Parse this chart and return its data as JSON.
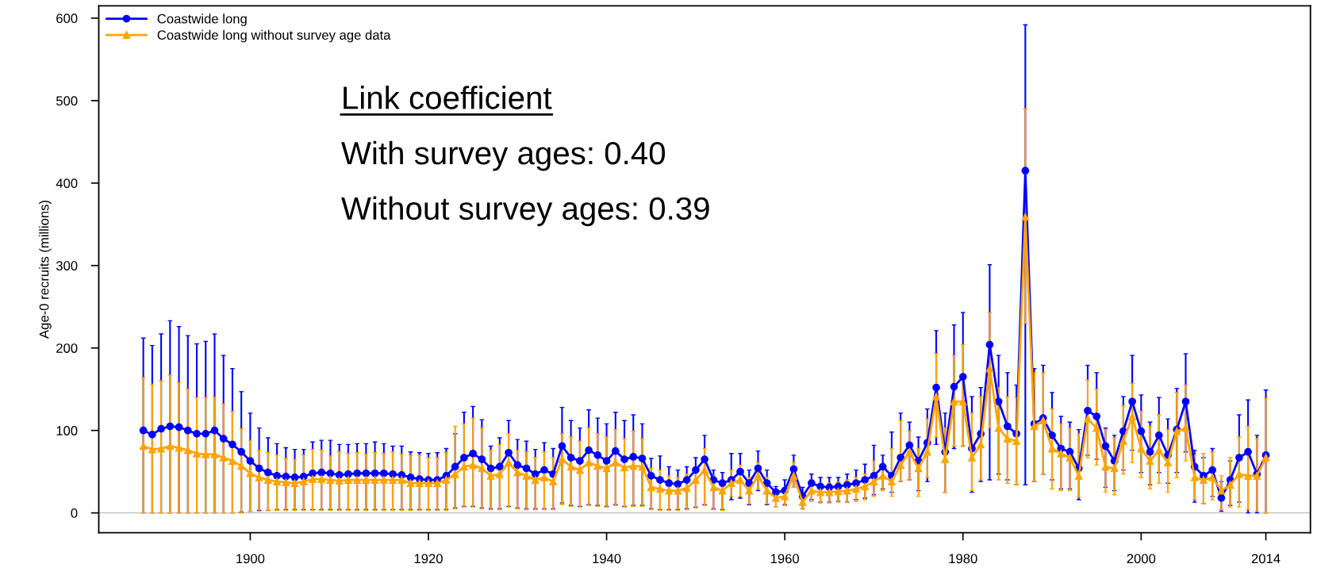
{
  "chart_data": {
    "type": "line",
    "ylabel": "Age-0 recruits (millions)",
    "x": [
      1888,
      1889,
      1890,
      1891,
      1892,
      1893,
      1894,
      1895,
      1896,
      1897,
      1898,
      1899,
      1900,
      1901,
      1902,
      1903,
      1904,
      1905,
      1906,
      1907,
      1908,
      1909,
      1910,
      1911,
      1912,
      1913,
      1914,
      1915,
      1916,
      1917,
      1918,
      1919,
      1920,
      1921,
      1922,
      1923,
      1924,
      1925,
      1926,
      1927,
      1928,
      1929,
      1930,
      1931,
      1932,
      1933,
      1934,
      1935,
      1936,
      1937,
      1938,
      1939,
      1940,
      1941,
      1942,
      1943,
      1944,
      1945,
      1946,
      1947,
      1948,
      1949,
      1950,
      1951,
      1952,
      1953,
      1954,
      1955,
      1956,
      1957,
      1958,
      1959,
      1960,
      1961,
      1962,
      1963,
      1964,
      1965,
      1966,
      1967,
      1968,
      1969,
      1970,
      1971,
      1972,
      1973,
      1974,
      1975,
      1976,
      1977,
      1978,
      1979,
      1980,
      1981,
      1982,
      1983,
      1984,
      1985,
      1986,
      1987,
      1988,
      1989,
      1990,
      1991,
      1992,
      1993,
      1994,
      1995,
      1996,
      1997,
      1998,
      1999,
      2000,
      2001,
      2002,
      2003,
      2004,
      2005,
      2006,
      2007,
      2008,
      2009,
      2010,
      2011,
      2012,
      2013,
      2014
    ],
    "series": [
      {
        "name": "Coastwide long",
        "color": "#0000ff",
        "marker": "circle",
        "values": [
          100,
          95,
          102,
          105,
          104,
          100,
          96,
          96,
          100,
          90,
          83,
          74,
          63,
          54,
          49,
          45,
          44,
          43,
          44,
          48,
          49,
          48,
          46,
          47,
          48,
          48,
          48,
          48,
          47,
          46,
          43,
          41,
          40,
          40,
          45,
          56,
          67,
          72,
          65,
          54,
          56,
          73,
          58,
          54,
          47,
          52,
          47,
          81,
          67,
          63,
          76,
          70,
          63,
          75,
          65,
          68,
          66,
          45,
          40,
          36,
          35,
          40,
          52,
          65,
          40,
          36,
          40,
          50,
          36,
          54,
          36,
          25,
          27,
          53,
          20,
          36,
          32,
          31,
          32,
          34,
          36,
          40,
          45,
          56,
          45,
          67,
          82,
          63,
          85,
          152,
          74,
          153,
          165,
          78,
          96,
          204,
          135,
          105,
          96,
          415,
          108,
          115,
          94,
          78,
          74,
          54,
          124,
          117,
          81,
          63,
          99,
          135,
          99,
          74,
          94,
          70,
          101,
          135,
          56,
          45,
          52,
          18,
          40,
          67,
          74,
          47,
          70
        ],
        "errors": [
          [
            0,
            212
          ],
          [
            0,
            203
          ],
          [
            0,
            217
          ],
          [
            0,
            233
          ],
          [
            0,
            226
          ],
          [
            0,
            215
          ],
          [
            0,
            205
          ],
          [
            0,
            208
          ],
          [
            0,
            217
          ],
          [
            0,
            191
          ],
          [
            0,
            175
          ],
          [
            1,
            147
          ],
          [
            2,
            121
          ],
          [
            3,
            103
          ],
          [
            3,
            91
          ],
          [
            4,
            84
          ],
          [
            4,
            79
          ],
          [
            4,
            77
          ],
          [
            4,
            77
          ],
          [
            4,
            86
          ],
          [
            4,
            88
          ],
          [
            4,
            88
          ],
          [
            4,
            83
          ],
          [
            4,
            83
          ],
          [
            4,
            84
          ],
          [
            4,
            84
          ],
          [
            4,
            86
          ],
          [
            4,
            84
          ],
          [
            4,
            81
          ],
          [
            4,
            81
          ],
          [
            4,
            74
          ],
          [
            4,
            73
          ],
          [
            4,
            72
          ],
          [
            4,
            73
          ],
          [
            4,
            78
          ],
          [
            6,
            96
          ],
          [
            8,
            122
          ],
          [
            8,
            129
          ],
          [
            6,
            113
          ],
          [
            5,
            81
          ],
          [
            5,
            91
          ],
          [
            8,
            112
          ],
          [
            6,
            89
          ],
          [
            5,
            87
          ],
          [
            5,
            77
          ],
          [
            5,
            85
          ],
          [
            5,
            78
          ],
          [
            12,
            128
          ],
          [
            9,
            112
          ],
          [
            8,
            103
          ],
          [
            10,
            125
          ],
          [
            9,
            115
          ],
          [
            8,
            108
          ],
          [
            10,
            122
          ],
          [
            8,
            112
          ],
          [
            9,
            119
          ],
          [
            9,
            108
          ],
          [
            5,
            66
          ],
          [
            4,
            69
          ],
          [
            4,
            56
          ],
          [
            4,
            52
          ],
          [
            5,
            56
          ],
          [
            7,
            67
          ],
          [
            10,
            94
          ],
          [
            5,
            52
          ],
          [
            4,
            49
          ],
          [
            16,
            72
          ],
          [
            18,
            72
          ],
          [
            10,
            52
          ],
          [
            27,
            75
          ],
          [
            10,
            52
          ],
          [
            7,
            32
          ],
          [
            10,
            40
          ],
          [
            31,
            70
          ],
          [
            5,
            31
          ],
          [
            16,
            47
          ],
          [
            13,
            43
          ],
          [
            13,
            43
          ],
          [
            14,
            43
          ],
          [
            13,
            47
          ],
          [
            16,
            52
          ],
          [
            18,
            59
          ],
          [
            22,
            82
          ],
          [
            29,
            70
          ],
          [
            25,
            98
          ],
          [
            38,
            121
          ],
          [
            40,
            110
          ],
          [
            27,
            92
          ],
          [
            38,
            126
          ],
          [
            83,
            221
          ],
          [
            25,
            121
          ],
          [
            78,
            228
          ],
          [
            81,
            243
          ],
          [
            25,
            141
          ],
          [
            38,
            152
          ],
          [
            40,
            301
          ],
          [
            47,
            191
          ],
          [
            40,
            170
          ],
          [
            34,
            155
          ],
          [
            34,
            592
          ],
          [
            38,
            175
          ],
          [
            47,
            179
          ],
          [
            40,
            146
          ],
          [
            29,
            117
          ],
          [
            29,
            110
          ],
          [
            16,
            101
          ],
          [
            70,
            179
          ],
          [
            65,
            170
          ],
          [
            31,
            103
          ],
          [
            27,
            94
          ],
          [
            52,
            141
          ],
          [
            76,
            191
          ],
          [
            49,
            143
          ],
          [
            34,
            110
          ],
          [
            49,
            140
          ],
          [
            36,
            114
          ],
          [
            49,
            151
          ],
          [
            74,
            193
          ],
          [
            13,
            76
          ],
          [
            11,
            67
          ],
          [
            20,
            78
          ],
          [
            2,
            38
          ],
          [
            9,
            63
          ],
          [
            13,
            119
          ],
          [
            0,
            137
          ],
          [
            0,
            94
          ],
          [
            0,
            149
          ]
        ]
      },
      {
        "name": "Coastwide long without survey age data",
        "color": "#ffa500",
        "marker": "triangle",
        "values": [
          81,
          77,
          78,
          81,
          79,
          76,
          72,
          71,
          71,
          67,
          63,
          57,
          48,
          43,
          40,
          38,
          37,
          36,
          38,
          41,
          41,
          40,
          39,
          40,
          40,
          40,
          40,
          40,
          40,
          40,
          36,
          36,
          36,
          36,
          40,
          47,
          56,
          58,
          54,
          45,
          47,
          61,
          49,
          45,
          40,
          43,
          38,
          65,
          56,
          52,
          61,
          57,
          54,
          61,
          55,
          57,
          56,
          31,
          29,
          27,
          27,
          30,
          40,
          52,
          31,
          27,
          36,
          40,
          27,
          45,
          27,
          18,
          20,
          45,
          13,
          27,
          25,
          25,
          26,
          27,
          29,
          32,
          38,
          45,
          38,
          58,
          74,
          54,
          74,
          141,
          65,
          135,
          135,
          67,
          83,
          175,
          103,
          90,
          87,
          359,
          105,
          112,
          78,
          72,
          67,
          45,
          114,
          103,
          56,
          54,
          87,
          117,
          78,
          63,
          76,
          61,
          99,
          103,
          43,
          40,
          43,
          27,
          34,
          47,
          45,
          45,
          67
        ],
        "errors": [
          [
            0,
            164
          ],
          [
            0,
            156
          ],
          [
            0,
            160
          ],
          [
            0,
            167
          ],
          [
            0,
            158
          ],
          [
            0,
            150
          ],
          [
            0,
            140
          ],
          [
            0,
            140
          ],
          [
            0,
            140
          ],
          [
            0,
            132
          ],
          [
            0,
            123
          ],
          [
            0,
            102
          ],
          [
            2,
            88
          ],
          [
            2,
            76
          ],
          [
            3,
            73
          ],
          [
            3,
            70
          ],
          [
            3,
            66
          ],
          [
            3,
            65
          ],
          [
            3,
            70
          ],
          [
            3,
            77
          ],
          [
            3,
            76
          ],
          [
            3,
            69
          ],
          [
            3,
            74
          ],
          [
            3,
            72
          ],
          [
            3,
            73
          ],
          [
            3,
            71
          ],
          [
            3,
            73
          ],
          [
            3,
            72
          ],
          [
            3,
            74
          ],
          [
            3,
            71
          ],
          [
            3,
            70
          ],
          [
            3,
            70
          ],
          [
            3,
            67
          ],
          [
            3,
            67
          ],
          [
            3,
            73
          ],
          [
            5,
            105
          ],
          [
            7,
            108
          ],
          [
            7,
            115
          ],
          [
            5,
            103
          ],
          [
            4,
            76
          ],
          [
            4,
            83
          ],
          [
            7,
            96
          ],
          [
            5,
            76
          ],
          [
            4,
            74
          ],
          [
            4,
            67
          ],
          [
            4,
            74
          ],
          [
            4,
            67
          ],
          [
            10,
            96
          ],
          [
            8,
            92
          ],
          [
            7,
            87
          ],
          [
            9,
            103
          ],
          [
            8,
            96
          ],
          [
            7,
            92
          ],
          [
            9,
            101
          ],
          [
            7,
            90
          ],
          [
            8,
            99
          ],
          [
            8,
            90
          ],
          [
            4,
            54
          ],
          [
            3,
            52
          ],
          [
            3,
            45
          ],
          [
            3,
            43
          ],
          [
            4,
            47
          ],
          [
            6,
            52
          ],
          [
            9,
            78
          ],
          [
            4,
            45
          ],
          [
            3,
            40
          ],
          [
            20,
            52
          ],
          [
            20,
            58
          ],
          [
            11,
            43
          ],
          [
            29,
            61
          ],
          [
            11,
            43
          ],
          [
            7,
            27
          ],
          [
            9,
            31
          ],
          [
            31,
            61
          ],
          [
            5,
            22
          ],
          [
            14,
            40
          ],
          [
            12,
            36
          ],
          [
            12,
            36
          ],
          [
            13,
            37
          ],
          [
            13,
            40
          ],
          [
            14,
            43
          ],
          [
            16,
            47
          ],
          [
            20,
            63
          ],
          [
            27,
            57
          ],
          [
            20,
            78
          ],
          [
            38,
            112
          ],
          [
            40,
            99
          ],
          [
            20,
            78
          ],
          [
            43,
            114
          ],
          [
            92,
            193
          ],
          [
            25,
            103
          ],
          [
            81,
            191
          ],
          [
            81,
            204
          ],
          [
            27,
            121
          ],
          [
            40,
            141
          ],
          [
            103,
            243
          ],
          [
            40,
            152
          ],
          [
            36,
            141
          ],
          [
            34,
            140
          ],
          [
            230,
            490
          ],
          [
            38,
            170
          ],
          [
            47,
            170
          ],
          [
            29,
            126
          ],
          [
            27,
            108
          ],
          [
            27,
            103
          ],
          [
            19,
            96
          ],
          [
            67,
            161
          ],
          [
            58,
            150
          ],
          [
            25,
            101
          ],
          [
            22,
            91
          ],
          [
            47,
            130
          ],
          [
            61,
            157
          ],
          [
            43,
            123
          ],
          [
            29,
            105
          ],
          [
            36,
            119
          ],
          [
            25,
            101
          ],
          [
            43,
            146
          ],
          [
            63,
            155
          ],
          [
            16,
            70
          ],
          [
            11,
            72
          ],
          [
            16,
            74
          ],
          [
            4,
            45
          ],
          [
            7,
            67
          ],
          [
            7,
            92
          ],
          [
            4,
            105
          ],
          [
            2,
            90
          ],
          [
            0,
            139
          ]
        ]
      }
    ],
    "xlim": [
      1883,
      2019
    ],
    "xticks": [
      1900,
      1920,
      1940,
      1960,
      1980,
      2000,
      2014
    ],
    "ylim": [
      -24,
      615
    ],
    "yticks": [
      0,
      100,
      200,
      300,
      400,
      500,
      600
    ],
    "ref_lines": [
      {
        "axis": "y",
        "value": 0,
        "color": "#bebebe"
      }
    ],
    "annotations": [
      "Link coefficient",
      "With survey ages: 0.40",
      "Without survey ages: 0.39"
    ],
    "legend": "top left",
    "grid": false,
    "line_style": "solid"
  }
}
